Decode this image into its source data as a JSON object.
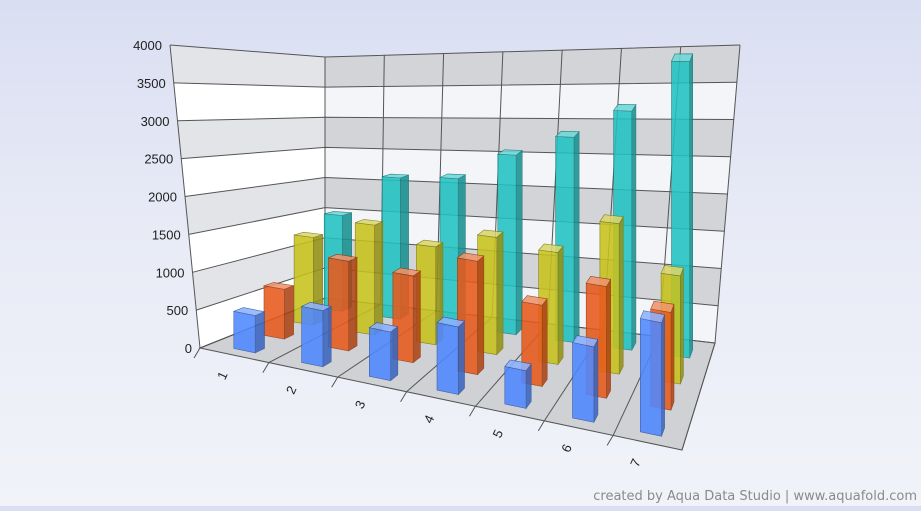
{
  "chart_data": {
    "type": "bar",
    "subtype": "3d-column",
    "categories": [
      "1",
      "2",
      "3",
      "4",
      "5",
      "6",
      "7"
    ],
    "series": [
      {
        "values": [
          500,
          750,
          650,
          900,
          500,
          1000,
          1500
        ]
      },
      {
        "values": [
          700,
          1250,
          1200,
          1550,
          1100,
          1500,
          1300
        ]
      },
      {
        "values": [
          1300,
          1600,
          1400,
          1650,
          1550,
          2050,
          1450
        ]
      },
      {
        "values": [
          1500,
          2150,
          2200,
          2600,
          2900,
          3300,
          4000
        ]
      }
    ],
    "y_ticks": [
      "0",
      "500",
      "1000",
      "1500",
      "2000",
      "2500",
      "3000",
      "3500",
      "4000"
    ],
    "ylim": [
      0,
      4000
    ],
    "grid": true,
    "colors": [
      "#4f88ff",
      "#e85a1c",
      "#c8c21c",
      "#21c2c2"
    ]
  },
  "watermark": "created by Aqua Data Studio | www.aquafold.com"
}
